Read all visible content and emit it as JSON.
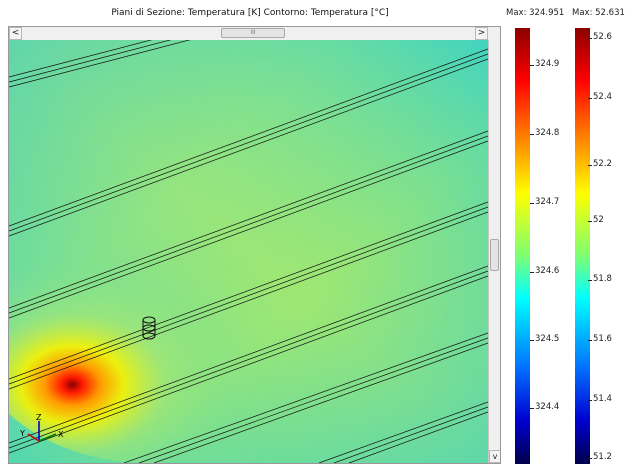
{
  "title": "Piani di Sezione: Temperatura [K]  Contorno: Temperatura [°C]",
  "scrollbar": {
    "left_arrow": "<",
    "right_arrow": ">",
    "thumb_grip": "III",
    "down_arrow": "v"
  },
  "axis_triad": {
    "z": "Z",
    "y": "Y",
    "x": "X"
  },
  "colorbar_left": {
    "max_label": "Max: 324.951",
    "ticks": [
      "324.9",
      "324.8",
      "324.7",
      "324.6",
      "324.5",
      "324.4"
    ]
  },
  "colorbar_right": {
    "max_label": "Max: 52.631",
    "ticks": [
      "52.6",
      "52.4",
      "52.2",
      "52",
      "51.8",
      "51.6",
      "51.4",
      "51.2"
    ]
  },
  "colors": {
    "hot": "#8b0000",
    "red": "#ff0000",
    "orange": "#ff8000",
    "yellow": "#ffff00",
    "green": "#7fff50",
    "cyan": "#00ffff",
    "blue": "#0040ff",
    "dark_blue": "#00004a"
  }
}
